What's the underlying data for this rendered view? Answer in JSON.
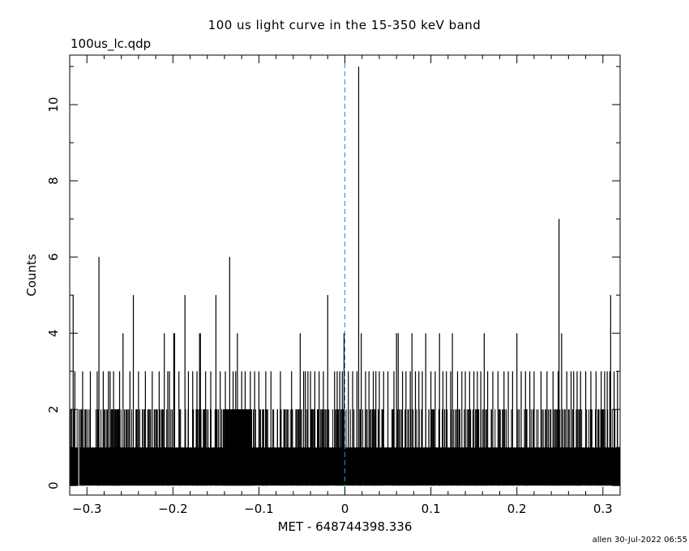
{
  "chart_data": {
    "type": "bar",
    "title": "100 us light curve in the 15-350 keV band",
    "subtitle": "100us_lc.qdp",
    "xlabel": "MET - 648744398.336",
    "ylabel": "Counts",
    "xlim": [
      -0.32,
      0.32
    ],
    "ylim": [
      -0.25,
      11.3
    ],
    "x_ticks": [
      {
        "value": -0.3,
        "label": "−0.3"
      },
      {
        "value": -0.2,
        "label": "−0.2"
      },
      {
        "value": -0.1,
        "label": "−0.1"
      },
      {
        "value": 0,
        "label": "0"
      },
      {
        "value": 0.1,
        "label": "0.1"
      },
      {
        "value": 0.2,
        "label": "0.2"
      },
      {
        "value": 0.3,
        "label": "0.3"
      }
    ],
    "y_ticks": [
      {
        "value": 0,
        "label": "0"
      },
      {
        "value": 2,
        "label": "2"
      },
      {
        "value": 4,
        "label": "4"
      },
      {
        "value": 6,
        "label": "6"
      },
      {
        "value": 8,
        "label": "8"
      },
      {
        "value": 10,
        "label": "10"
      }
    ],
    "bin_width": 0.0001,
    "trigger_line": {
      "x": 0,
      "color": "#1a9bc9",
      "style": "dashed"
    },
    "bar_color": "#000000",
    "peaks": [
      {
        "x": -0.316,
        "value": 5
      },
      {
        "x": -0.314,
        "value": 3
      },
      {
        "x": -0.305,
        "value": 3
      },
      {
        "x": -0.296,
        "value": 3
      },
      {
        "x": -0.288,
        "value": 3
      },
      {
        "x": -0.286,
        "value": 6
      },
      {
        "x": -0.281,
        "value": 3
      },
      {
        "x": -0.275,
        "value": 3
      },
      {
        "x": -0.273,
        "value": 3
      },
      {
        "x": -0.269,
        "value": 3
      },
      {
        "x": -0.262,
        "value": 3
      },
      {
        "x": -0.258,
        "value": 4
      },
      {
        "x": -0.25,
        "value": 3
      },
      {
        "x": -0.246,
        "value": 5
      },
      {
        "x": -0.24,
        "value": 3
      },
      {
        "x": -0.232,
        "value": 3
      },
      {
        "x": -0.224,
        "value": 3
      },
      {
        "x": -0.216,
        "value": 3
      },
      {
        "x": -0.21,
        "value": 4
      },
      {
        "x": -0.206,
        "value": 3
      },
      {
        "x": -0.204,
        "value": 3
      },
      {
        "x": -0.199,
        "value": 4
      },
      {
        "x": -0.198,
        "value": 4
      },
      {
        "x": -0.193,
        "value": 3
      },
      {
        "x": -0.186,
        "value": 5
      },
      {
        "x": -0.182,
        "value": 3
      },
      {
        "x": -0.177,
        "value": 3
      },
      {
        "x": -0.172,
        "value": 3
      },
      {
        "x": -0.169,
        "value": 4
      },
      {
        "x": -0.168,
        "value": 4
      },
      {
        "x": -0.162,
        "value": 3
      },
      {
        "x": -0.156,
        "value": 3
      },
      {
        "x": -0.15,
        "value": 5
      },
      {
        "x": -0.145,
        "value": 3
      },
      {
        "x": -0.139,
        "value": 3
      },
      {
        "x": -0.134,
        "value": 6
      },
      {
        "x": -0.13,
        "value": 3
      },
      {
        "x": -0.127,
        "value": 3
      },
      {
        "x": -0.125,
        "value": 4
      },
      {
        "x": -0.12,
        "value": 3
      },
      {
        "x": -0.116,
        "value": 3
      },
      {
        "x": -0.11,
        "value": 3
      },
      {
        "x": -0.105,
        "value": 3
      },
      {
        "x": -0.1,
        "value": 3
      },
      {
        "x": -0.092,
        "value": 3
      },
      {
        "x": -0.086,
        "value": 3
      },
      {
        "x": -0.075,
        "value": 3
      },
      {
        "x": -0.062,
        "value": 3
      },
      {
        "x": -0.052,
        "value": 4
      },
      {
        "x": -0.048,
        "value": 3
      },
      {
        "x": -0.046,
        "value": 3
      },
      {
        "x": -0.043,
        "value": 3
      },
      {
        "x": -0.04,
        "value": 3
      },
      {
        "x": -0.035,
        "value": 3
      },
      {
        "x": -0.03,
        "value": 3
      },
      {
        "x": -0.025,
        "value": 3
      },
      {
        "x": -0.02,
        "value": 5
      },
      {
        "x": -0.012,
        "value": 3
      },
      {
        "x": -0.009,
        "value": 3
      },
      {
        "x": -0.006,
        "value": 3
      },
      {
        "x": -0.003,
        "value": 3
      },
      {
        "x": -0.001,
        "value": 4
      },
      {
        "x": 0.004,
        "value": 3
      },
      {
        "x": 0.009,
        "value": 3
      },
      {
        "x": 0.014,
        "value": 3
      },
      {
        "x": 0.016,
        "value": 11
      },
      {
        "x": 0.019,
        "value": 4
      },
      {
        "x": 0.024,
        "value": 3
      },
      {
        "x": 0.028,
        "value": 3
      },
      {
        "x": 0.033,
        "value": 3
      },
      {
        "x": 0.036,
        "value": 3
      },
      {
        "x": 0.04,
        "value": 3
      },
      {
        "x": 0.045,
        "value": 3
      },
      {
        "x": 0.05,
        "value": 3
      },
      {
        "x": 0.057,
        "value": 3
      },
      {
        "x": 0.06,
        "value": 4
      },
      {
        "x": 0.062,
        "value": 4
      },
      {
        "x": 0.067,
        "value": 3
      },
      {
        "x": 0.071,
        "value": 3
      },
      {
        "x": 0.076,
        "value": 3
      },
      {
        "x": 0.078,
        "value": 4
      },
      {
        "x": 0.082,
        "value": 3
      },
      {
        "x": 0.086,
        "value": 3
      },
      {
        "x": 0.09,
        "value": 3
      },
      {
        "x": 0.094,
        "value": 4
      },
      {
        "x": 0.1,
        "value": 3
      },
      {
        "x": 0.105,
        "value": 3
      },
      {
        "x": 0.11,
        "value": 4
      },
      {
        "x": 0.114,
        "value": 3
      },
      {
        "x": 0.118,
        "value": 3
      },
      {
        "x": 0.123,
        "value": 3
      },
      {
        "x": 0.125,
        "value": 4
      },
      {
        "x": 0.131,
        "value": 3
      },
      {
        "x": 0.136,
        "value": 3
      },
      {
        "x": 0.14,
        "value": 3
      },
      {
        "x": 0.145,
        "value": 3
      },
      {
        "x": 0.15,
        "value": 3
      },
      {
        "x": 0.154,
        "value": 3
      },
      {
        "x": 0.158,
        "value": 3
      },
      {
        "x": 0.162,
        "value": 4
      },
      {
        "x": 0.166,
        "value": 3
      },
      {
        "x": 0.172,
        "value": 3
      },
      {
        "x": 0.178,
        "value": 3
      },
      {
        "x": 0.185,
        "value": 3
      },
      {
        "x": 0.19,
        "value": 3
      },
      {
        "x": 0.195,
        "value": 3
      },
      {
        "x": 0.2,
        "value": 4
      },
      {
        "x": 0.205,
        "value": 3
      },
      {
        "x": 0.21,
        "value": 3
      },
      {
        "x": 0.215,
        "value": 3
      },
      {
        "x": 0.22,
        "value": 3
      },
      {
        "x": 0.228,
        "value": 3
      },
      {
        "x": 0.235,
        "value": 3
      },
      {
        "x": 0.242,
        "value": 3
      },
      {
        "x": 0.248,
        "value": 3
      },
      {
        "x": 0.249,
        "value": 7
      },
      {
        "x": 0.252,
        "value": 4
      },
      {
        "x": 0.258,
        "value": 3
      },
      {
        "x": 0.263,
        "value": 3
      },
      {
        "x": 0.266,
        "value": 3
      },
      {
        "x": 0.27,
        "value": 3
      },
      {
        "x": 0.274,
        "value": 3
      },
      {
        "x": 0.28,
        "value": 3
      },
      {
        "x": 0.286,
        "value": 3
      },
      {
        "x": 0.292,
        "value": 3
      },
      {
        "x": 0.298,
        "value": 3
      },
      {
        "x": 0.302,
        "value": 3
      },
      {
        "x": 0.305,
        "value": 3
      },
      {
        "x": 0.308,
        "value": 3
      },
      {
        "x": 0.309,
        "value": 5
      },
      {
        "x": 0.313,
        "value": 3
      },
      {
        "x": 0.317,
        "value": 3
      }
    ],
    "zero_bins": [
      -0.3095
    ],
    "baseline_note": "most bins 0-2 counts; dense band of 1s, frequent 2s"
  },
  "footer": "allen 30-Jul-2022 06:55"
}
